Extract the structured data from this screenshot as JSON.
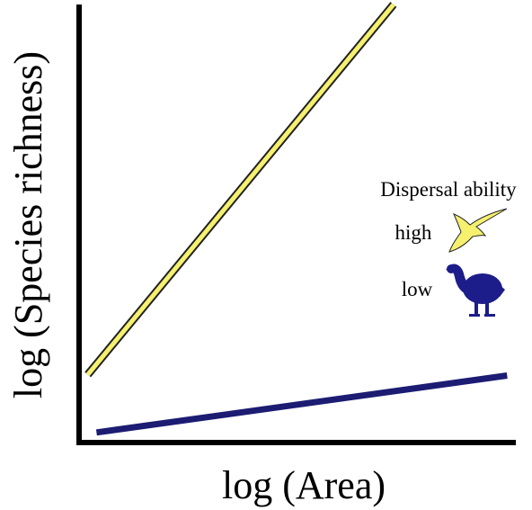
{
  "chart_data": {
    "type": "line",
    "title": "",
    "xlabel": "log (Area)",
    "ylabel": "log (Species richness)",
    "xlim": [
      0,
      10
    ],
    "ylim": [
      0,
      10
    ],
    "grid": false,
    "legend_placement": "right",
    "legend_title": "Dispersal ability",
    "series": [
      {
        "name": "high",
        "icon": "swift-bird-icon",
        "color": "#f5f06e",
        "outline": "#222222",
        "x": [
          0.2,
          7.2
        ],
        "y": [
          1.55,
          10.0
        ]
      },
      {
        "name": "low",
        "icon": "cassowary-bird-icon",
        "color": "#1c1c73",
        "x": [
          0.4,
          9.8
        ],
        "y": [
          0.23,
          1.53
        ]
      }
    ]
  }
}
